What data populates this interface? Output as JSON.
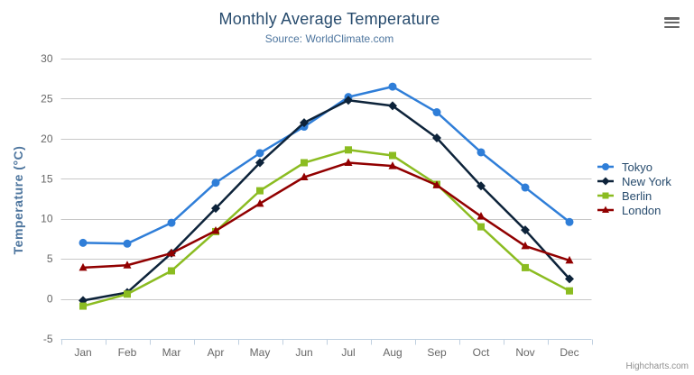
{
  "chart_data": {
    "type": "line",
    "title": "Monthly Average Temperature",
    "subtitle": "Source: WorldClimate.com",
    "xlabel": "",
    "ylabel": "Temperature (°C)",
    "ylim": [
      -5,
      30
    ],
    "y_tick_interval": 5,
    "grid": true,
    "legend_position": "right",
    "categories": [
      "Jan",
      "Feb",
      "Mar",
      "Apr",
      "May",
      "Jun",
      "Jul",
      "Aug",
      "Sep",
      "Oct",
      "Nov",
      "Dec"
    ],
    "series": [
      {
        "name": "Tokyo",
        "color": "#2f7ed8",
        "marker": "circle",
        "values": [
          7.0,
          6.9,
          9.5,
          14.5,
          18.2,
          21.5,
          25.2,
          26.5,
          23.3,
          18.3,
          13.9,
          9.6
        ]
      },
      {
        "name": "New York",
        "color": "#0d233a",
        "marker": "diamond",
        "values": [
          -0.2,
          0.8,
          5.7,
          11.3,
          17.0,
          22.0,
          24.8,
          24.1,
          20.1,
          14.1,
          8.6,
          2.5
        ]
      },
      {
        "name": "Berlin",
        "color": "#8bbc21",
        "marker": "square",
        "values": [
          -0.9,
          0.6,
          3.5,
          8.4,
          13.5,
          17.0,
          18.6,
          17.9,
          14.3,
          9.0,
          3.9,
          1.0
        ]
      },
      {
        "name": "London",
        "color": "#910000",
        "marker": "triangle",
        "values": [
          3.9,
          4.2,
          5.7,
          8.5,
          11.9,
          15.2,
          17.0,
          16.6,
          14.2,
          10.3,
          6.6,
          4.8
        ]
      }
    ],
    "credits": "Highcharts.com"
  },
  "colors": {
    "title": "#274b6d",
    "subtitle": "#4d759e",
    "axis_title": "#4d759e",
    "axis_labels": "#666666",
    "grid_line": "#c8c8c8",
    "axis_line": "#c0d0e0",
    "legend_text": "#274b6d",
    "credits": "#909090",
    "menu_icon": "#666666"
  }
}
